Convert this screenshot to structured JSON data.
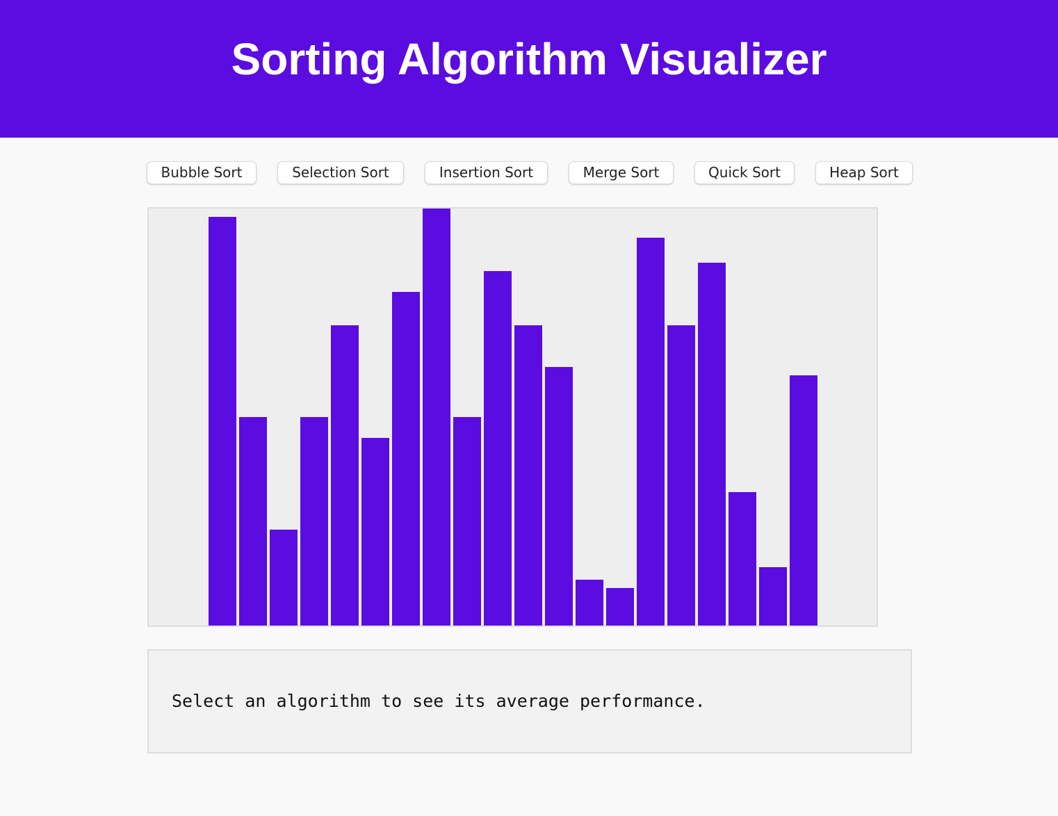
{
  "header": {
    "title": "Sorting Algorithm Visualizer",
    "background": "#5a0ce1",
    "title_color": "#ffffff"
  },
  "algorithms": [
    {
      "label": "Bubble Sort"
    },
    {
      "label": "Selection Sort"
    },
    {
      "label": "Insertion Sort"
    },
    {
      "label": "Merge Sort"
    },
    {
      "label": "Quick Sort"
    },
    {
      "label": "Heap Sort"
    }
  ],
  "chart_data": {
    "type": "bar",
    "values": [
      98,
      50,
      23,
      50,
      72,
      45,
      80,
      100,
      50,
      85,
      72,
      62,
      11,
      9,
      93,
      72,
      87,
      32,
      14,
      60
    ],
    "ylim": [
      0,
      100
    ],
    "bar_color": "#5a0ce1",
    "background": "#eeeeee"
  },
  "info": {
    "text": "Select an algorithm to see its average performance."
  }
}
